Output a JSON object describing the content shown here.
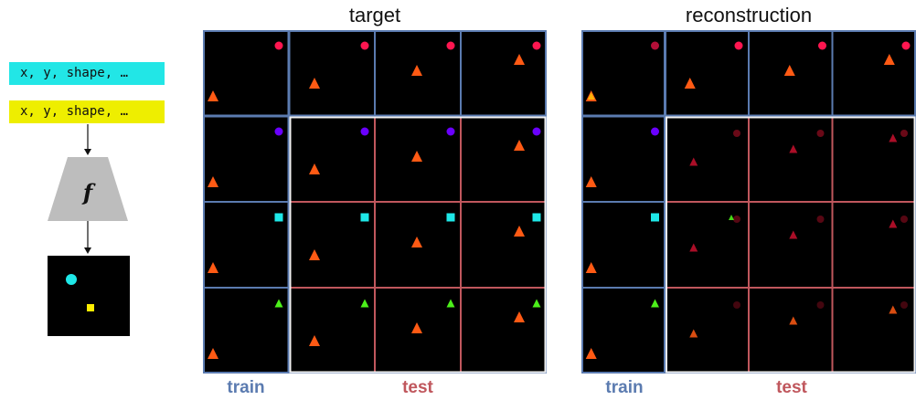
{
  "colors": {
    "latent_top": "#22e6e6",
    "latent_bottom": "#eeee00",
    "decoder": "#bdbdbd",
    "train_border": "#5b7bb0",
    "test_border": "#c0575d",
    "orange": "#ff5a14",
    "pink": "#ff1650",
    "purple": "#6a00ff",
    "cyan": "#1ee8e8",
    "green": "#4cf01a",
    "yellow": "#ffee00"
  },
  "latents": [
    "x, y, shape, …",
    "x, y, shape, …"
  ],
  "decoder_symbol": "f",
  "panels": {
    "target_title": "target",
    "reconstruction_title": "reconstruction",
    "train_label": "train",
    "test_label": "test"
  },
  "grid": {
    "rows": 4,
    "cols": 4,
    "row_objects": [
      {
        "shape": "circle",
        "color": "pink"
      },
      {
        "shape": "circle",
        "color": "purple"
      },
      {
        "shape": "square",
        "color": "cyan"
      },
      {
        "shape": "triangle",
        "color": "green"
      }
    ],
    "col_objects": [
      {
        "shape": "triangle",
        "color": "orange"
      },
      {
        "shape": "triangle",
        "color": "orange"
      },
      {
        "shape": "triangle",
        "color": "orange"
      },
      {
        "shape": "triangle",
        "color": "orange"
      }
    ]
  }
}
